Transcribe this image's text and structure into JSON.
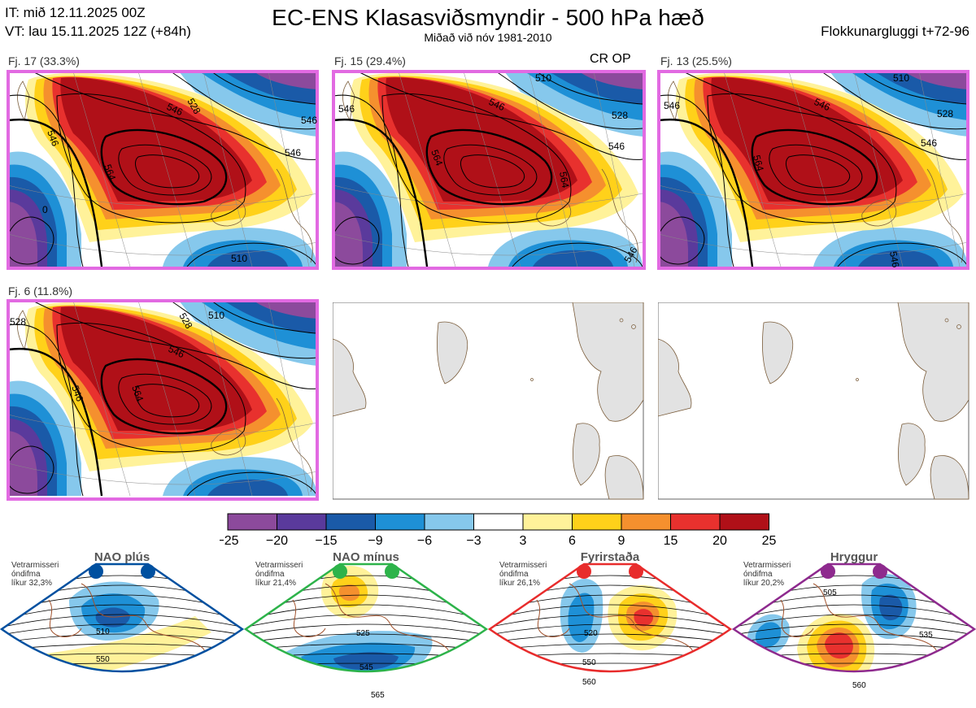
{
  "header": {
    "init_time": "IT: mið 12.11.2025 00Z",
    "valid_time": "VT: lau 15.11.2025 12Z  (+84h)",
    "title": "EC-ENS Klasasviðsmyndir - 500 hPa hæð",
    "subtitle": "Miðað við nóv 1981-2010",
    "window": "Flokkunargluggi t+72-96"
  },
  "clusters": [
    {
      "label": "Fj. 17 (33.3%)",
      "contours": [
        "528",
        "546",
        "546",
        "546",
        "564",
        "546",
        "510",
        "0"
      ]
    },
    {
      "label": "Fj. 15 (29.4%)",
      "extra": "CR OP",
      "contours": [
        "510",
        "528",
        "546",
        "546",
        "546",
        "564",
        "564",
        "546"
      ]
    },
    {
      "label": "Fj. 13 (25.5%)",
      "contours": [
        "510",
        "528",
        "546",
        "546",
        "546",
        "564",
        "546"
      ]
    },
    {
      "label": "Fj. 6 (11.8%)",
      "contours": [
        "510",
        "528",
        "546",
        "546",
        "564",
        "528"
      ]
    }
  ],
  "colorbar": {
    "ticks": [
      "−25",
      "−20",
      "−15",
      "−9",
      "−6",
      "−3",
      "3",
      "6",
      "9",
      "15",
      "20",
      "25"
    ],
    "colors": [
      "#8c4a9c",
      "#5a3a9c",
      "#1a5aa8",
      "#1e90d6",
      "#86c8ec",
      "#ffffff",
      "#fff29a",
      "#ffd11a",
      "#f5902e",
      "#e8312e",
      "#b01018"
    ]
  },
  "regimes": [
    {
      "name": "NAO plús",
      "note1": "Vetrarmisseri",
      "note2": "óndifma",
      "note3": "líkur 32,3%",
      "color": "#0050a0",
      "contours": [
        "510",
        "550"
      ]
    },
    {
      "name": "NAO mínus",
      "note1": "Vetrarmisseri",
      "note2": "óndifma",
      "note3": "líkur 21,4%",
      "color": "#2db34a",
      "contours": [
        "525",
        "545",
        "565"
      ]
    },
    {
      "name": "Fyrirstaða",
      "note1": "Vetrarmisseri",
      "note2": "óndifma",
      "note3": "líkur 26,1%",
      "color": "#e82c2c",
      "contours": [
        "520",
        "550",
        "560"
      ]
    },
    {
      "name": "Hryggur",
      "note1": "Vetrarmisseri",
      "note2": "óndifma",
      "note3": "líkur 20,2%",
      "color": "#8e2a8e",
      "contours": [
        "505",
        "535",
        "560"
      ]
    }
  ]
}
